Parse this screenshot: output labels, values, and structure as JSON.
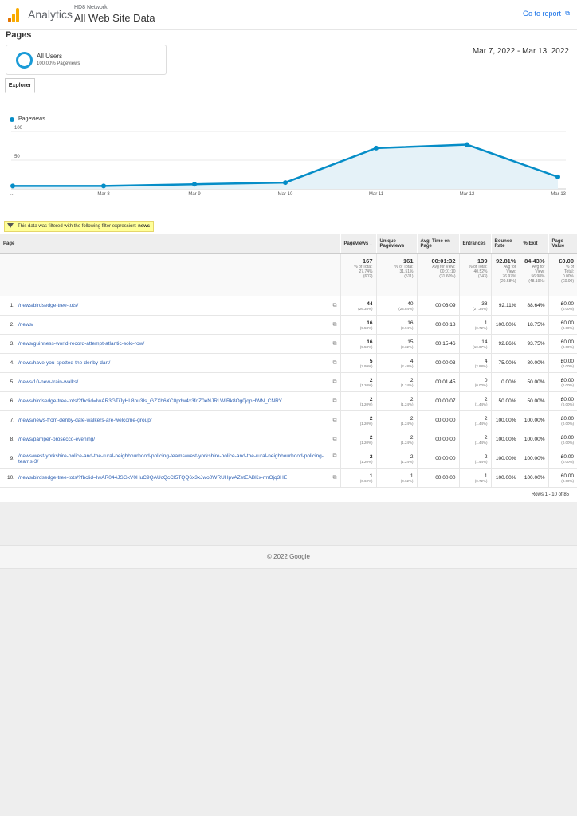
{
  "header": {
    "app": "Analytics",
    "network": "HD8 Network",
    "property": "All Web Site Data",
    "goto_report": "Go to report",
    "goto_icon": "external-link-icon"
  },
  "page_title": "Pages",
  "segment": {
    "name": "All Users",
    "detail": "100.00% Pageviews"
  },
  "date_range": "Mar 7, 2022 - Mar 13, 2022",
  "tabs": [
    "Explorer"
  ],
  "chart_data": {
    "type": "area",
    "series": [
      {
        "name": "Pageviews",
        "values": [
          5,
          5,
          8,
          11,
          71,
          77,
          21
        ]
      }
    ],
    "categories": [
      "...",
      "Mar 8",
      "Mar 9",
      "Mar 10",
      "Mar 11",
      "Mar 12",
      "Mar 13"
    ],
    "yticks": [
      50,
      100
    ],
    "ylim": [
      0,
      100
    ],
    "color": "#058dc7",
    "fill": "#e5f2f8",
    "legend": "top-left"
  },
  "filter": {
    "text": "This data was filtered with the following filter expression:",
    "expression": "news"
  },
  "table": {
    "headers": [
      "Page",
      "Pageviews ↓",
      "Unique Pageviews",
      "Avg. Time on Page",
      "Entrances",
      "Bounce Rate",
      "% Exit",
      "Page Value"
    ],
    "totals": [
      {
        "main": "167",
        "lines": [
          "% of Total:",
          "27.74%",
          "(602)"
        ]
      },
      {
        "main": "161",
        "lines": [
          "% of Total:",
          "31.51%",
          "(511)"
        ]
      },
      {
        "main": "00:01:32",
        "lines": [
          "Avg for View:",
          "00:01:10",
          "(31.60%)"
        ]
      },
      {
        "main": "139",
        "lines": [
          "% of Total:",
          "40.52%",
          "(343)"
        ]
      },
      {
        "main": "92.81%",
        "lines": [
          "Avg for",
          "View:",
          "76.97%",
          "(20.58%)"
        ]
      },
      {
        "main": "84.43%",
        "lines": [
          "Avg for",
          "View:",
          "56.98%",
          "(48.19%)"
        ]
      },
      {
        "main": "£0.00",
        "lines": [
          "% of",
          "Total:",
          "0.00%",
          "(£0.00)"
        ]
      }
    ],
    "rows": [
      {
        "idx": "1.",
        "page": "/news/birdsedge-tree-tots/",
        "pv": "44",
        "pv_pct": "(26.35%)",
        "upv": "40",
        "upv_pct": "(24.84%)",
        "time": "00:03:09",
        "ent": "38",
        "ent_pct": "(27.34%)",
        "bounce": "92.11%",
        "exit": "88.64%",
        "value": "£0.00",
        "value_pct": "(0.00%)"
      },
      {
        "idx": "2.",
        "page": "/news/",
        "pv": "16",
        "pv_pct": "(9.58%)",
        "upv": "16",
        "upv_pct": "(9.94%)",
        "time": "00:00:18",
        "ent": "1",
        "ent_pct": "(0.72%)",
        "bounce": "100.00%",
        "exit": "18.75%",
        "value": "£0.00",
        "value_pct": "(0.00%)"
      },
      {
        "idx": "3.",
        "page": "/news/guinness-world-record-attempt-atlantic-solo-row/",
        "pv": "16",
        "pv_pct": "(9.58%)",
        "upv": "15",
        "upv_pct": "(9.32%)",
        "time": "00:15:46",
        "ent": "14",
        "ent_pct": "(10.07%)",
        "bounce": "92.86%",
        "exit": "93.75%",
        "value": "£0.00",
        "value_pct": "(0.00%)"
      },
      {
        "idx": "4.",
        "page": "/news/have-you-spotted-the-denby-dart/",
        "pv": "5",
        "pv_pct": "(2.99%)",
        "upv": "4",
        "upv_pct": "(2.48%)",
        "time": "00:00:03",
        "ent": "4",
        "ent_pct": "(2.88%)",
        "bounce": "75.00%",
        "exit": "80.00%",
        "value": "£0.00",
        "value_pct": "(0.00%)"
      },
      {
        "idx": "5.",
        "page": "/news/10-new-train-walks/",
        "pv": "2",
        "pv_pct": "(1.20%)",
        "upv": "2",
        "upv_pct": "(1.24%)",
        "time": "00:01:45",
        "ent": "0",
        "ent_pct": "(0.00%)",
        "bounce": "0.00%",
        "exit": "50.00%",
        "value": "£0.00",
        "value_pct": "(0.00%)"
      },
      {
        "idx": "6.",
        "page": "/news/birdsedge-tree-tots/?fbclid=IwAR3GTiJyHL8nu3Is_GZXb6XC0pdw4x3fdZ0eNJRLWIRk8Og0jqpHWN_CNRY",
        "pv": "2",
        "pv_pct": "(1.20%)",
        "upv": "2",
        "upv_pct": "(1.24%)",
        "time": "00:00:07",
        "ent": "2",
        "ent_pct": "(1.44%)",
        "bounce": "50.00%",
        "exit": "50.00%",
        "value": "£0.00",
        "value_pct": "(0.00%)"
      },
      {
        "idx": "7.",
        "page": "/news/news-from-denby-dale-walkers-are-welcome-group/",
        "pv": "2",
        "pv_pct": "(1.20%)",
        "upv": "2",
        "upv_pct": "(1.24%)",
        "time": "00:00:00",
        "ent": "2",
        "ent_pct": "(1.44%)",
        "bounce": "100.00%",
        "exit": "100.00%",
        "value": "£0.00",
        "value_pct": "(0.00%)"
      },
      {
        "idx": "8.",
        "page": "/news/pamper-prosecco-evening/",
        "pv": "2",
        "pv_pct": "(1.20%)",
        "upv": "2",
        "upv_pct": "(1.24%)",
        "time": "00:00:00",
        "ent": "2",
        "ent_pct": "(1.44%)",
        "bounce": "100.00%",
        "exit": "100.00%",
        "value": "£0.00",
        "value_pct": "(0.00%)"
      },
      {
        "idx": "9.",
        "page": "/news/west-yorkshire-police-and-the-rural-neighbourhood-policing-teams/west-yorkshire-police-and-the-rural-neighbourhood-policing-teams-3/",
        "pv": "2",
        "pv_pct": "(1.20%)",
        "upv": "2",
        "upv_pct": "(1.24%)",
        "time": "00:00:00",
        "ent": "2",
        "ent_pct": "(1.44%)",
        "bounce": "100.00%",
        "exit": "100.00%",
        "value": "£0.00",
        "value_pct": "(0.00%)"
      },
      {
        "idx": "10.",
        "page": "/news/birdsedge-tree-tots/?fbclid=IwAR044JSGkV0HuC9QAUcQcCI5TQQ6x3xJwo0WRUHpvAZetEABKx-rmOjq3HE",
        "pv": "1",
        "pv_pct": "(0.60%)",
        "upv": "1",
        "upv_pct": "(0.62%)",
        "time": "00:00:00",
        "ent": "1",
        "ent_pct": "(0.72%)",
        "bounce": "100.00%",
        "exit": "100.00%",
        "value": "£0.00",
        "value_pct": "(0.00%)"
      }
    ],
    "rows_info": "Rows 1 - 10 of 85",
    "copy_icon": "copy-icon"
  },
  "footer": "© 2022 Google"
}
